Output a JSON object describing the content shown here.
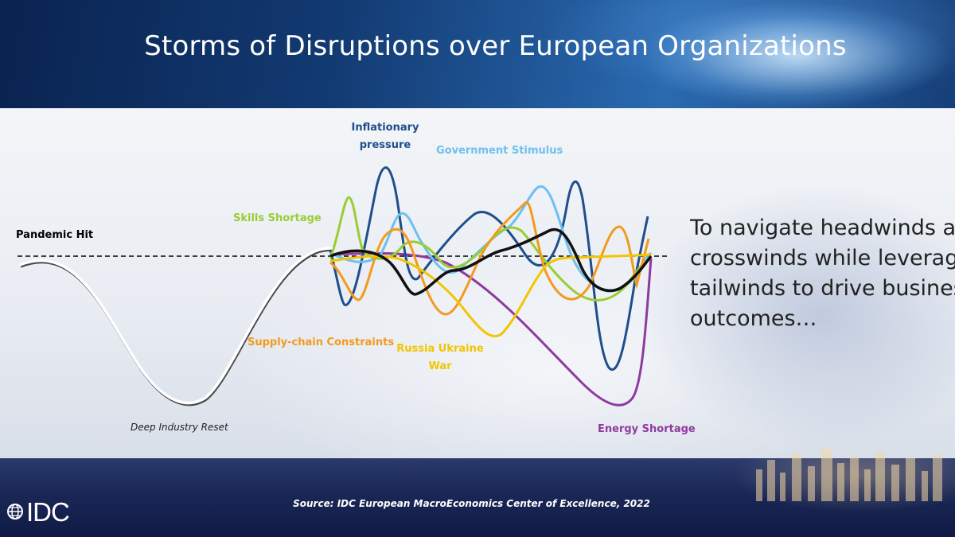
{
  "title": "Storms of Disruptions over European Organizations",
  "side_text": {
    "lines": [
      "To navigate headwinds and",
      "crosswinds while leveraging",
      "tailwinds to drive business",
      "outcomes…"
    ]
  },
  "source": "Source: IDC European MacroEconomics Center of Excellence, 2022",
  "logo_text": "IDC",
  "diagram": {
    "labels": {
      "pandemic_hit": "Pandemic Hit",
      "deep_industry_reset": "Deep Industry Reset",
      "skills_shortage": "Skills Shortage",
      "inflationary_pressure_line1": "Inflationary",
      "inflationary_pressure_line2": "pressure",
      "government_stimulus": "Government Stimulus",
      "supply_chain_constraints": "Supply-chain Constraints",
      "russia_ukraine_war_line1": "Russia Ukraine",
      "russia_ukraine_war_line2": "War",
      "energy_shortage": "Energy Shortage"
    },
    "colors": {
      "pandemic_curve": "#ffffff",
      "baseline": "#000000",
      "skills_shortage": "#9acd32",
      "inflationary_pressure": "#1f4e8c",
      "government_stimulus": "#6ec0ee",
      "supply_chain_constraints": "#f39a1e",
      "russia_ukraine_war": "#f2c500",
      "energy_shortage": "#8e3aa0",
      "black_disruption": "#111111"
    }
  }
}
